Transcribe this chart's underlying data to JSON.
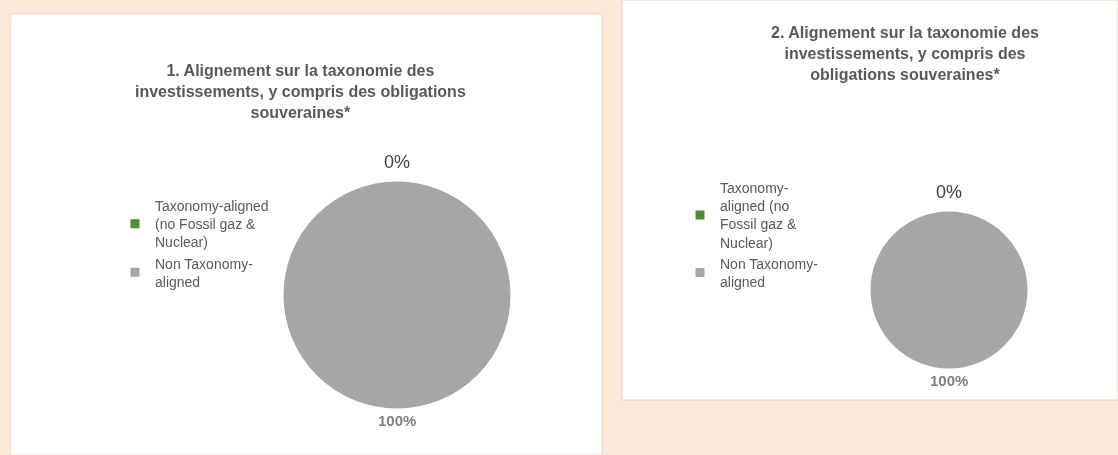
{
  "chart_data": [
    {
      "type": "pie",
      "title": "1. Alignement sur la taxonomie des investissements, y compris des obligations souveraines*",
      "categories": [
        "Taxonomy-aligned (no Fossil gaz & Nuclear)",
        "Non Taxonomy-aligned"
      ],
      "values": [
        0,
        100
      ],
      "colors": [
        "#4e8f2f",
        "#a6a6a6"
      ],
      "value_labels": [
        "0%",
        "100%"
      ],
      "legend": "left"
    },
    {
      "type": "pie",
      "title": "2. Alignement sur la taxonomie des investissements, y compris des obligations souveraines*",
      "categories": [
        "Taxonomy-aligned (no Fossil gaz & Nuclear)",
        "Non Taxonomy-aligned"
      ],
      "values": [
        0,
        100
      ],
      "colors": [
        "#4e8f2f",
        "#a6a6a6"
      ],
      "value_labels": [
        "0%",
        "100%"
      ],
      "legend": "left"
    }
  ]
}
